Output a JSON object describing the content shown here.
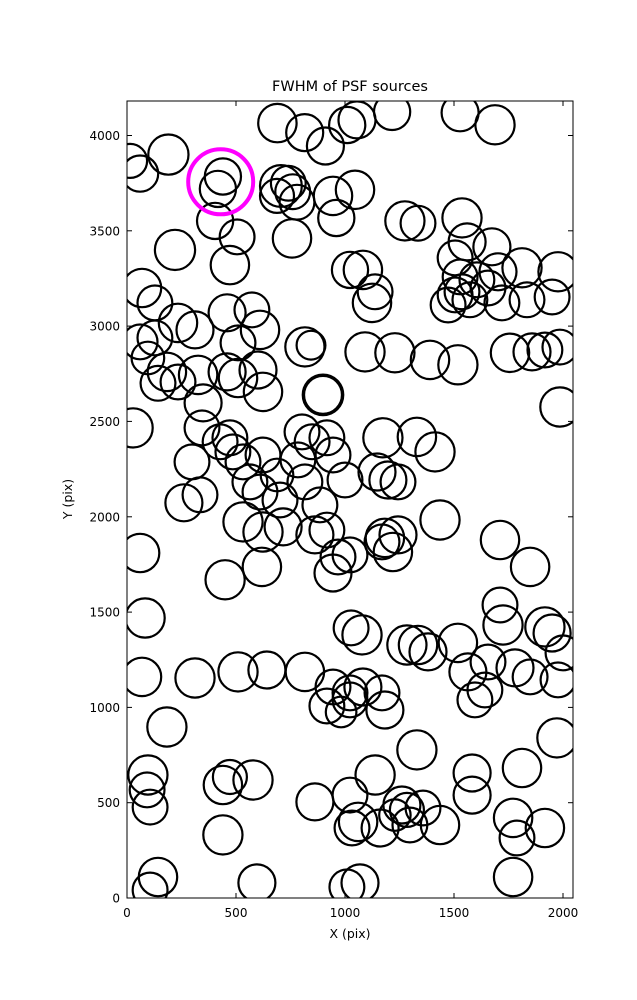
{
  "figure": {
    "title": "FWHM of PSF sources"
  },
  "chart_data": {
    "type": "scatter",
    "title": "FWHM of PSF sources",
    "xlabel": "X (pix)",
    "ylabel": "Y (pix)",
    "xlim": [
      0,
      2046
    ],
    "ylim": [
      0,
      4181
    ],
    "xticks": [
      0,
      500,
      1000,
      1500,
      2000
    ],
    "yticks": [
      0,
      500,
      1000,
      1500,
      2000,
      2500,
      3000,
      3500,
      4000
    ],
    "grid": false,
    "legend": null,
    "marker_style": "open-circle",
    "colors": {
      "marker": "#000000",
      "highlight": "#ff00ff",
      "axes": "#000000",
      "background": "#ffffff"
    },
    "default_stroke_width": 2.2,
    "highlight_point": {
      "x": 430,
      "y": 3757,
      "r": 149,
      "stroke_width": 4
    },
    "points": [
      [
        690,
        4065,
        88
      ],
      [
        815,
        4015,
        85
      ],
      [
        910,
        3945,
        85
      ],
      [
        1010,
        4055,
        83
      ],
      [
        190,
        3900,
        92
      ],
      [
        60,
        3800,
        83
      ],
      [
        440,
        3785,
        83
      ],
      [
        417,
        3720,
        83
      ],
      [
        706,
        3735,
        96
      ],
      [
        740,
        3750,
        80
      ],
      [
        760,
        3705,
        80
      ],
      [
        688,
        3683,
        78
      ],
      [
        780,
        3650,
        80
      ],
      [
        945,
        3683,
        88
      ],
      [
        1046,
        3715,
        88
      ],
      [
        404,
        3552,
        83
      ],
      [
        505,
        3468,
        80
      ],
      [
        220,
        3400,
        92
      ],
      [
        472,
        3320,
        88
      ],
      [
        69,
        3200,
        88
      ],
      [
        1023,
        3295,
        83
      ],
      [
        14,
        3867,
        78
      ],
      [
        757,
        3460,
        88
      ],
      [
        1055,
        4082,
        85
      ],
      [
        1216,
        4124,
        83
      ],
      [
        1528,
        4119,
        85
      ],
      [
        1688,
        4056,
        90
      ],
      [
        960,
        3567,
        83
      ],
      [
        1275,
        3552,
        90
      ],
      [
        1335,
        3540,
        80
      ],
      [
        1537,
        3568,
        90
      ],
      [
        1560,
        3442,
        85
      ],
      [
        1674,
        3416,
        85
      ],
      [
        1505,
        3358,
        80
      ],
      [
        1528,
        3258,
        80
      ],
      [
        1605,
        3243,
        80
      ],
      [
        1702,
        3285,
        85
      ],
      [
        1812,
        3306,
        90
      ],
      [
        1977,
        3285,
        90
      ],
      [
        1537,
        3180,
        80
      ],
      [
        1473,
        3111,
        80
      ],
      [
        1505,
        3164,
        80
      ],
      [
        1573,
        3138,
        80
      ],
      [
        1656,
        3200,
        80
      ],
      [
        1720,
        3122,
        80
      ],
      [
        1835,
        3138,
        80
      ],
      [
        1950,
        3153,
        80
      ],
      [
        1138,
        3180,
        80
      ],
      [
        1124,
        3122,
        88
      ],
      [
        1082,
        3295,
        88
      ],
      [
        1092,
        2865,
        90
      ],
      [
        1229,
        2860,
        90
      ],
      [
        1390,
        2823,
        88
      ],
      [
        1518,
        2797,
        90
      ],
      [
        1757,
        2860,
        88
      ],
      [
        1858,
        2865,
        85
      ],
      [
        1917,
        2875,
        80
      ],
      [
        1986,
        2890,
        80
      ],
      [
        1986,
        2576,
        90
      ],
      [
        1174,
        2414,
        90
      ],
      [
        1330,
        2419,
        88
      ],
      [
        1413,
        2340,
        90
      ],
      [
        1147,
        2235,
        85
      ],
      [
        1197,
        2193,
        85
      ],
      [
        1243,
        2183,
        80
      ],
      [
        1000,
        2193,
        80
      ],
      [
        128,
        3122,
        80
      ],
      [
        234,
        3017,
        88
      ],
      [
        312,
        2980,
        85
      ],
      [
        459,
        3070,
        85
      ],
      [
        573,
        3085,
        80
      ],
      [
        610,
        2980,
        88
      ],
      [
        816,
        2891,
        90
      ],
      [
        844,
        2900,
        66
      ],
      [
        60,
        2917,
        80
      ],
      [
        128,
        2938,
        80
      ],
      [
        96,
        2833,
        75
      ],
      [
        183,
        2760,
        88
      ],
      [
        142,
        2700,
        80
      ],
      [
        234,
        2707,
        80
      ],
      [
        326,
        2744,
        88
      ],
      [
        349,
        2597,
        85
      ],
      [
        459,
        2760,
        85
      ],
      [
        509,
        2728,
        88
      ],
      [
        601,
        2770,
        85
      ],
      [
        509,
        2912,
        80
      ],
      [
        624,
        2655,
        88
      ],
      [
        899,
        2639,
        90,
        3.5
      ],
      [
        803,
        2445,
        80
      ],
      [
        849,
        2393,
        80
      ],
      [
        344,
        2466,
        80
      ],
      [
        427,
        2393,
        80
      ],
      [
        472,
        2414,
        80
      ],
      [
        486,
        2340,
        80
      ],
      [
        532,
        2288,
        80
      ],
      [
        298,
        2288,
        80
      ],
      [
        624,
        2324,
        80
      ],
      [
        564,
        2183,
        80
      ],
      [
        610,
        2130,
        80
      ],
      [
        688,
        2219,
        75
      ],
      [
        784,
        2298,
        80
      ],
      [
        816,
        2183,
        80
      ],
      [
        917,
        2414,
        80
      ],
      [
        945,
        2324,
        80
      ],
      [
        28,
        2466,
        90
      ],
      [
        261,
        2073,
        85
      ],
      [
        335,
        2115,
        80
      ],
      [
        532,
        1973,
        90
      ],
      [
        702,
        2088,
        80
      ],
      [
        885,
        2062,
        80
      ],
      [
        624,
        1920,
        90
      ],
      [
        716,
        1947,
        85
      ],
      [
        862,
        1905,
        85
      ],
      [
        917,
        1930,
        80
      ],
      [
        968,
        1789,
        80
      ],
      [
        1023,
        1800,
        80
      ],
      [
        945,
        1705,
        85
      ],
      [
        450,
        1669,
        90
      ],
      [
        619,
        1737,
        88
      ],
      [
        60,
        1810,
        88
      ],
      [
        83,
        1469,
        90
      ],
      [
        69,
        1160,
        88
      ],
      [
        312,
        1154,
        90
      ],
      [
        509,
        1186,
        90
      ],
      [
        642,
        1196,
        85
      ],
      [
        816,
        1186,
        88
      ],
      [
        945,
        1107,
        80
      ],
      [
        1023,
        1076,
        80
      ],
      [
        1028,
        1417,
        80
      ],
      [
        1436,
        1983,
        90
      ],
      [
        1183,
        1889,
        88
      ],
      [
        1243,
        1905,
        85
      ],
      [
        1220,
        1815,
        88
      ],
      [
        1170,
        1868,
        80
      ],
      [
        1711,
        1878,
        88
      ],
      [
        1849,
        1737,
        88
      ],
      [
        1078,
        1380,
        90
      ],
      [
        1284,
        1327,
        90
      ],
      [
        1335,
        1327,
        88
      ],
      [
        1381,
        1291,
        85
      ],
      [
        1518,
        1338,
        88
      ],
      [
        1725,
        1432,
        90
      ],
      [
        1711,
        1537,
        80
      ],
      [
        1917,
        1422,
        90
      ],
      [
        1950,
        1390,
        85
      ],
      [
        1564,
        1186,
        85
      ],
      [
        1656,
        1238,
        80
      ],
      [
        1780,
        1207,
        85
      ],
      [
        1849,
        1160,
        80
      ],
      [
        2000,
        1286,
        80
      ],
      [
        1977,
        1144,
        80
      ],
      [
        1082,
        1107,
        85
      ],
      [
        1170,
        1076,
        80
      ],
      [
        1642,
        1091,
        80
      ],
      [
        183,
        897,
        90
      ],
      [
        96,
        645,
        90
      ],
      [
        92,
        567,
        80
      ],
      [
        106,
        477,
        80
      ],
      [
        440,
        593,
        88
      ],
      [
        472,
        635,
        78
      ],
      [
        578,
        619,
        90
      ],
      [
        440,
        331,
        90
      ],
      [
        862,
        504,
        85
      ],
      [
        1023,
        540,
        80
      ],
      [
        1032,
        367,
        80
      ],
      [
        142,
        110,
        88
      ],
      [
        106,
        42,
        80
      ],
      [
        596,
        79,
        85
      ],
      [
        1009,
        58,
        80
      ],
      [
        917,
        1007,
        80
      ],
      [
        982,
        976,
        70
      ],
      [
        1023,
        1039,
        80
      ],
      [
        1183,
        986,
        85
      ],
      [
        1330,
        777,
        90
      ],
      [
        1138,
        645,
        90
      ],
      [
        1261,
        488,
        85
      ],
      [
        1284,
        462,
        78
      ],
      [
        1229,
        435,
        72
      ],
      [
        1298,
        383,
        80
      ],
      [
        1358,
        472,
        80
      ],
      [
        1060,
        399,
        88
      ],
      [
        1161,
        367,
        85
      ],
      [
        1436,
        383,
        88
      ],
      [
        1583,
        656,
        85
      ],
      [
        1583,
        540,
        85
      ],
      [
        1812,
        682,
        88
      ],
      [
        1972,
        840,
        90
      ],
      [
        1771,
        420,
        88
      ],
      [
        1789,
        315,
        80
      ],
      [
        1917,
        367,
        88
      ],
      [
        1771,
        110,
        88
      ],
      [
        1069,
        79,
        85
      ],
      [
        1596,
        1039,
        80
      ]
    ]
  }
}
